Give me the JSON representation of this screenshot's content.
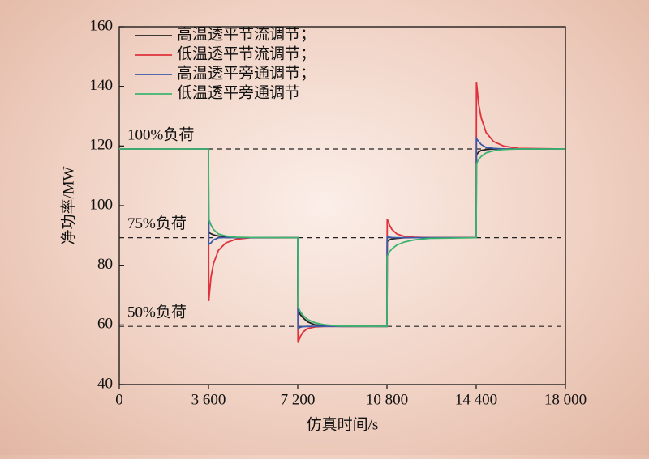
{
  "chart_data": {
    "type": "line",
    "xlabel": "仿真时间/s",
    "ylabel": "净功率/MW",
    "x": [
      0,
      3600,
      3610,
      3700,
      3800,
      4000,
      4300,
      4700,
      5300,
      7200,
      7210,
      7300,
      7400,
      7600,
      7900,
      8300,
      8900,
      10800,
      10810,
      10900,
      11000,
      11200,
      11500,
      11900,
      12500,
      14400,
      14410,
      14500,
      14600,
      14800,
      15100,
      15500,
      16100,
      18000
    ],
    "series": [
      {
        "name": "高温透平节流调节；",
        "color": "#222222",
        "values": [
          119,
          119,
          91,
          90.6,
          90.2,
          89.8,
          89.5,
          89.3,
          89.25,
          89.25,
          65,
          63.5,
          62.5,
          61,
          60,
          59.7,
          59.5,
          59.5,
          88,
          88.5,
          88.8,
          89,
          89.2,
          89.25,
          89.25,
          89.25,
          117,
          118,
          118.5,
          118.8,
          119,
          119,
          119,
          119
        ]
      },
      {
        "name": "低温透平节流调节；",
        "color": "#e0323c",
        "values": [
          119,
          119,
          68,
          76,
          80.5,
          85,
          87.5,
          88.7,
          89.2,
          89.25,
          54,
          56,
          57.5,
          58.8,
          59.3,
          59.5,
          59.5,
          59.5,
          95.5,
          93.5,
          92,
          90.5,
          89.7,
          89.4,
          89.25,
          89.25,
          141.5,
          134,
          129.5,
          124.5,
          121.5,
          120,
          119.2,
          119
        ]
      },
      {
        "name": "高温透平旁通调节；",
        "color": "#3c5aa8",
        "values": [
          119,
          119,
          87,
          87.5,
          88.5,
          89.2,
          89.3,
          89.25,
          89.25,
          89.25,
          58.8,
          59.2,
          59.4,
          59.5,
          59.5,
          59.5,
          59.5,
          59.5,
          89.5,
          89.4,
          89.3,
          89.25,
          89.25,
          89.25,
          89.25,
          89.25,
          122.5,
          121.5,
          120.5,
          119.5,
          119.2,
          119,
          119,
          119
        ]
      },
      {
        "name": "低温透平旁通调节",
        "color": "#3cb46e",
        "values": [
          119,
          119,
          95.5,
          93.5,
          92,
          90.5,
          89.8,
          89.4,
          89.3,
          89.25,
          66,
          64.5,
          63.3,
          61.8,
          60.7,
          60,
          59.6,
          59.5,
          83,
          84.5,
          85.5,
          86.8,
          87.8,
          88.5,
          89,
          89.25,
          114,
          115.5,
          116.5,
          117.7,
          118.4,
          118.8,
          119,
          119
        ]
      }
    ],
    "reference_lines": [
      {
        "value": 119,
        "label": "100%负荷"
      },
      {
        "value": 89.25,
        "label": "75%负荷"
      },
      {
        "value": 59.5,
        "label": "50%负荷"
      }
    ],
    "xlim": [
      0,
      18000
    ],
    "xticks": [
      0,
      {
        "value": 3600,
        "label": "3 600"
      },
      {
        "value": 7200,
        "label": "7 200"
      },
      {
        "value": 10800,
        "label": "10 800"
      },
      {
        "value": 14400,
        "label": "14 400"
      },
      {
        "value": 18000,
        "label": "18 000"
      }
    ],
    "ylim": [
      40,
      160
    ],
    "yticks": [
      40,
      60,
      80,
      100,
      120,
      140,
      160
    ],
    "legend": "upper left",
    "grid": false
  }
}
